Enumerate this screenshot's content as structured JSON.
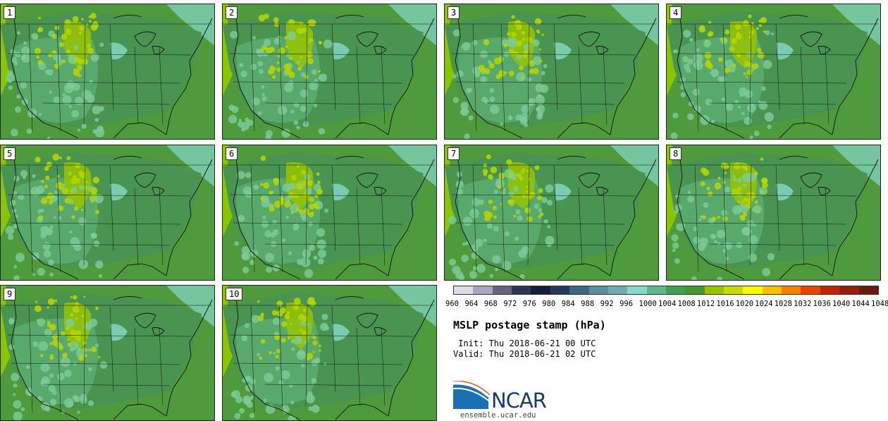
{
  "members": [
    "1",
    "2",
    "3",
    "4",
    "5",
    "6",
    "7",
    "8",
    "9",
    "10"
  ],
  "colorbar": {
    "colors": [
      "#dcdce4",
      "#a6a6bc",
      "#64647e",
      "#2c3556",
      "#141e3c",
      "#26385a",
      "#3e6680",
      "#5c8e9c",
      "#6eaaae",
      "#86d8c8",
      "#5eb888",
      "#469e56",
      "#45982e",
      "#94c400",
      "#c6dc00",
      "#f8f800",
      "#f8c000",
      "#f88000",
      "#ea4400",
      "#c02400",
      "#961c0c",
      "#6a1c0c"
    ],
    "ticks": [
      "960",
      "964",
      "968",
      "972",
      "976",
      "980",
      "984",
      "988",
      "992",
      "996",
      "1000",
      "1004",
      "1008",
      "1012",
      "1016",
      "1020",
      "1024",
      "1028",
      "1032",
      "1036",
      "1040",
      "1044",
      "1048"
    ]
  },
  "title": "MSLP postage stamp (hPa)",
  "init": " Init: Thu 2018-06-21 00 UTC",
  "valid": "Valid: Thu 2018-06-21 02 UTC",
  "logo": {
    "text": "NCAR",
    "url": "ensemble.ucar.edu"
  }
}
